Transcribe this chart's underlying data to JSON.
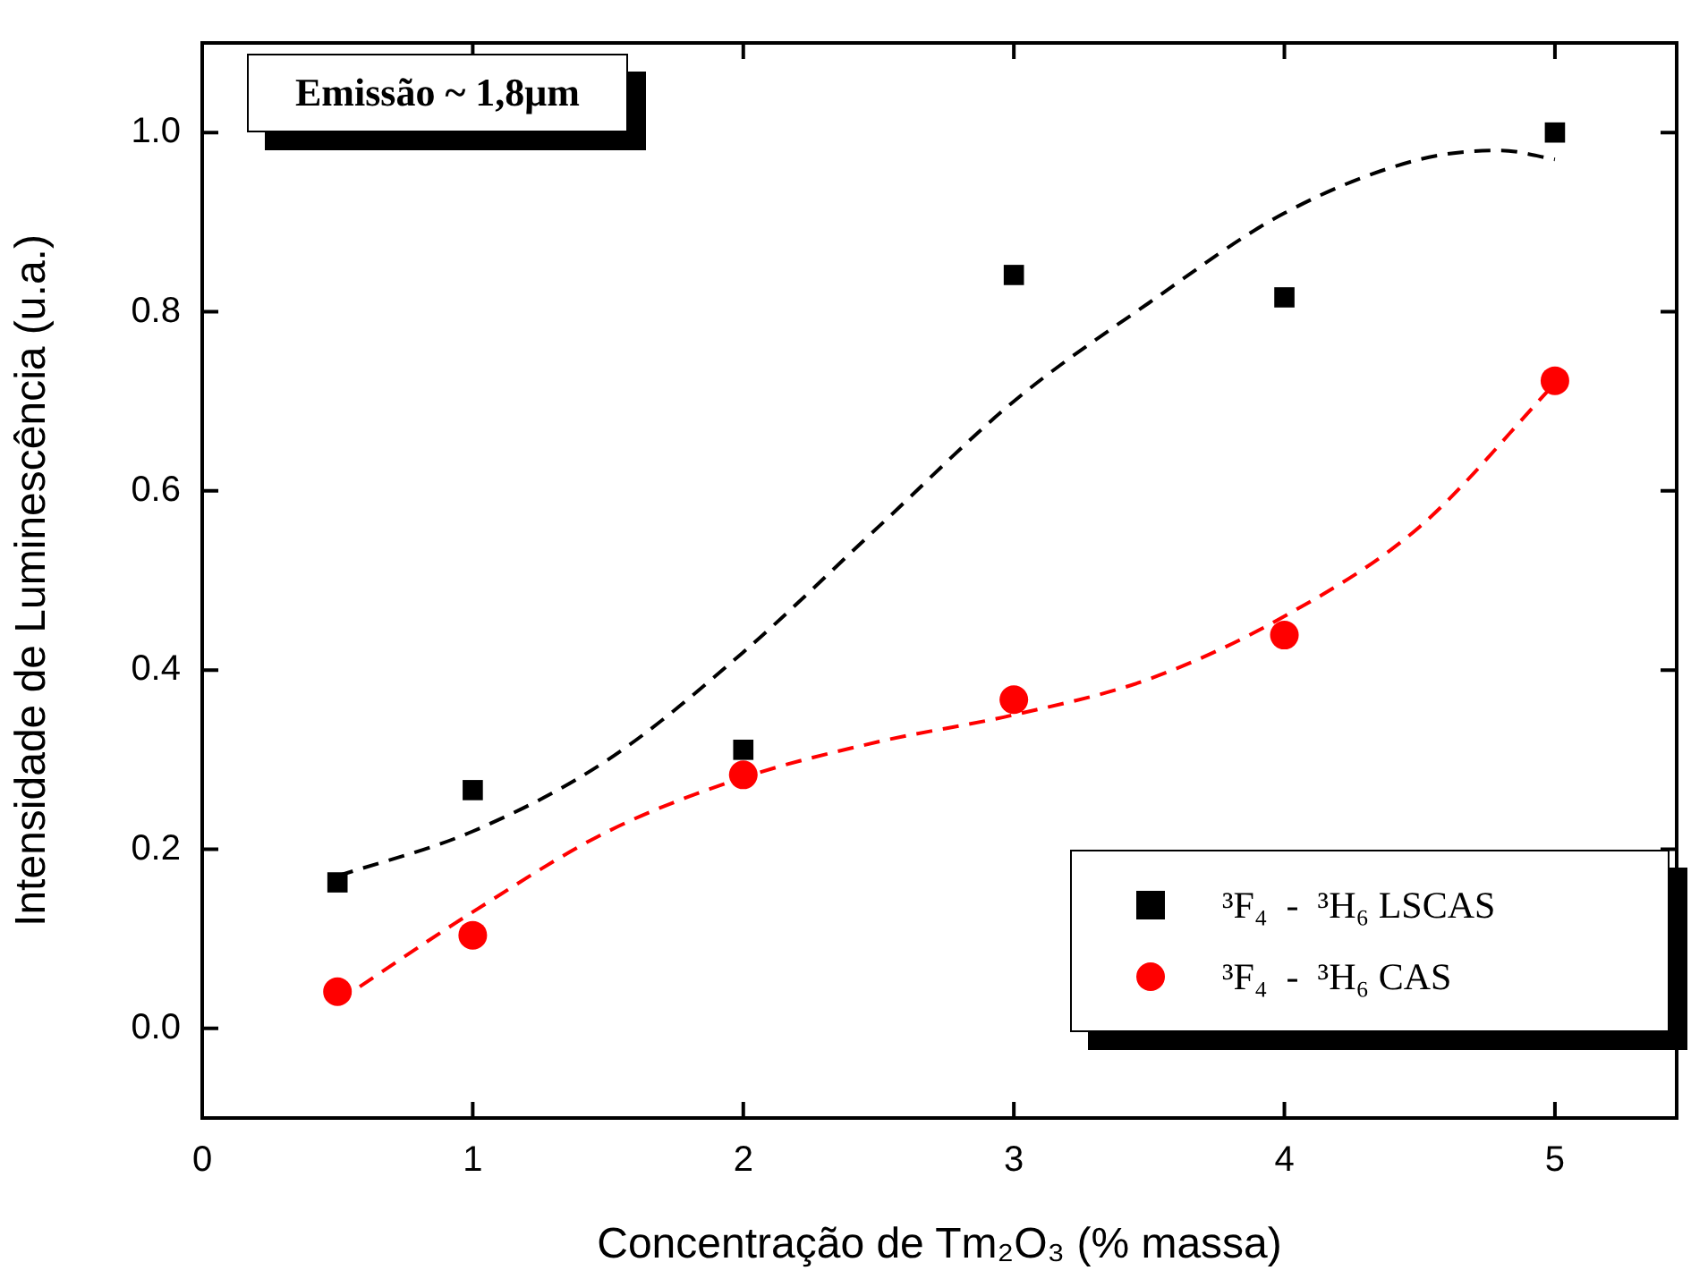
{
  "chart_data": {
    "type": "scatter",
    "xlabel": "Concentração de Tm₂O₃ (% massa)",
    "ylabel": "Intensidade de Luminescência (u.a.)",
    "xlim": [
      0,
      5.45
    ],
    "xticks": [
      0,
      1,
      2,
      3,
      4,
      5
    ],
    "ylim": [
      -0.1,
      1.1
    ],
    "yticks": [
      {
        "value": 0,
        "label": "0.0"
      },
      {
        "value": 0.2,
        "label": "0.2"
      },
      {
        "value": 0.4,
        "label": "0.4"
      },
      {
        "value": 0.6,
        "label": "0.6"
      },
      {
        "value": 0.8,
        "label": "0.8"
      },
      {
        "value": 1,
        "label": "1.0"
      }
    ],
    "grid": false,
    "legend": "bottom right",
    "annotations": [
      "Emissão ~ 1,8μm"
    ],
    "series": [
      {
        "name": "³F₄  -  ³H₆ LSCAS",
        "type": "scatter",
        "marker": "square",
        "color": "#000000",
        "x": [
          0.5,
          1,
          2,
          3,
          4,
          5
        ],
        "values": [
          0.163,
          0.266,
          0.311,
          0.841,
          0.816,
          1.0
        ]
      },
      {
        "name": "³F₄  -  ³H₆ CAS",
        "type": "scatter",
        "marker": "circle",
        "color": "#ff0000",
        "x": [
          0.5,
          1,
          2,
          3,
          4,
          5
        ],
        "values": [
          0.041,
          0.104,
          0.283,
          0.367,
          0.439,
          0.723
        ]
      },
      {
        "type": "line",
        "line_style": "dashed",
        "marker": "none",
        "color": "#000000",
        "x": [
          0.5,
          1,
          1.5,
          2,
          2.5,
          3,
          3.5,
          4,
          4.5,
          4.8,
          5
        ],
        "values": [
          0.17,
          0.22,
          0.3,
          0.42,
          0.56,
          0.7,
          0.81,
          0.91,
          0.97,
          0.98,
          0.97
        ]
      },
      {
        "type": "line",
        "line_style": "dashed",
        "marker": "none",
        "color": "#ff0000",
        "x": [
          0.5,
          1,
          1.5,
          2,
          2.5,
          3,
          3.5,
          4,
          4.5,
          5
        ],
        "values": [
          0.03,
          0.13,
          0.22,
          0.28,
          0.32,
          0.35,
          0.39,
          0.46,
          0.56,
          0.72
        ]
      }
    ]
  }
}
